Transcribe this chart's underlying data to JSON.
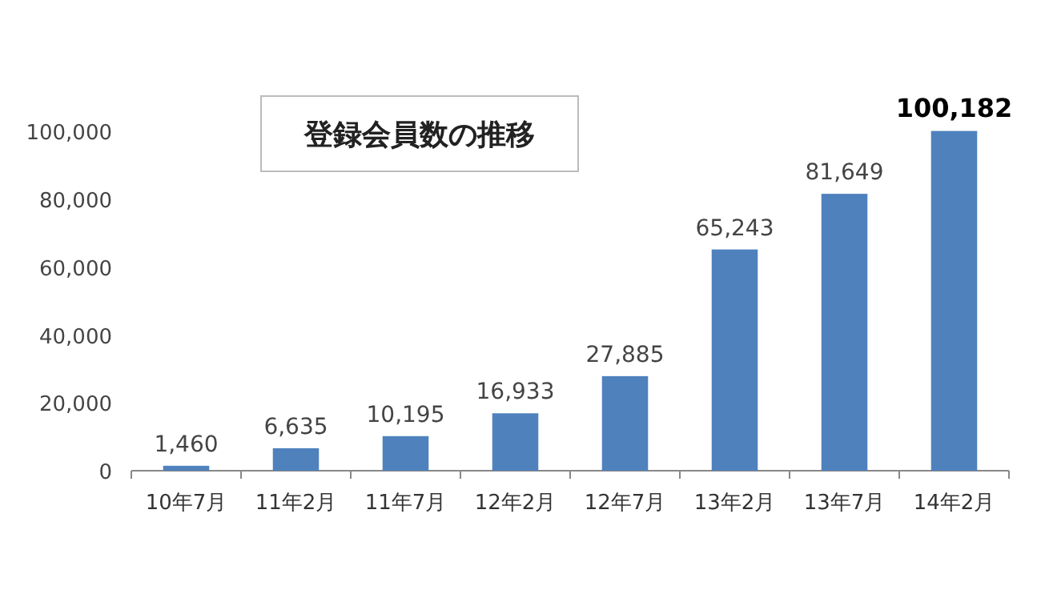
{
  "chart_data": {
    "type": "bar",
    "title": "登録会員数の推移",
    "categories": [
      "10年7月",
      "11年2月",
      "11年7月",
      "12年2月",
      "12年7月",
      "13年2月",
      "13年7月",
      "14年2月"
    ],
    "values": [
      1460,
      6635,
      10195,
      16933,
      27885,
      65243,
      81649,
      100182
    ],
    "value_labels": [
      "1,460",
      "6,635",
      "10,195",
      "16,933",
      "27,885",
      "65,243",
      "81,649",
      "100,182"
    ],
    "color": "#4f81bd",
    "ylim": [
      0,
      110000
    ],
    "yticks": [
      0,
      {
        "value": 20000,
        "label": "20,000"
      },
      {
        "value": 40000,
        "label": "40,000"
      },
      {
        "value": 60000,
        "label": "60,000"
      },
      {
        "value": 80000,
        "label": "80,000"
      },
      {
        "value": 100000,
        "label": "100,000"
      }
    ]
  }
}
